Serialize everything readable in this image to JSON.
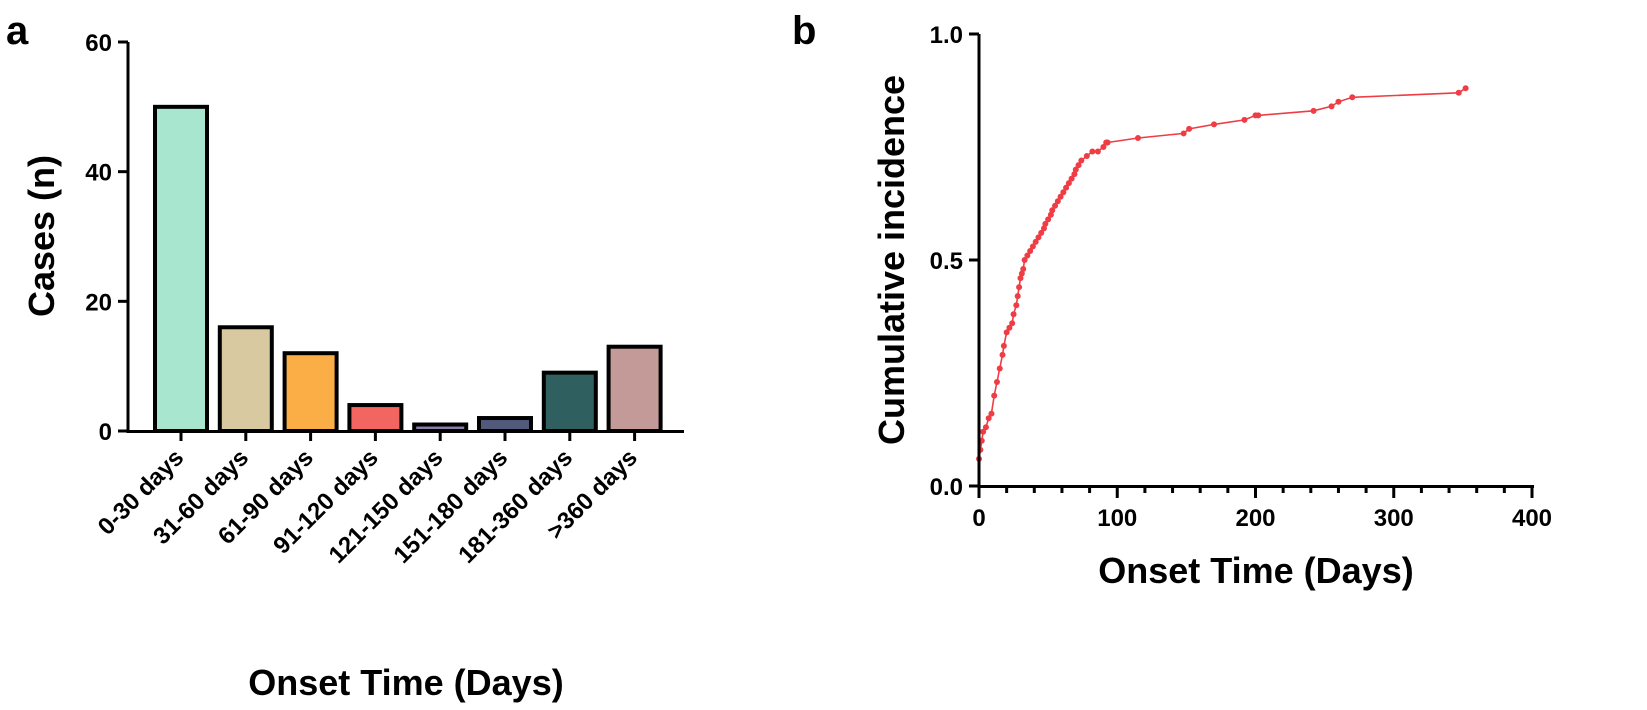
{
  "chart_data": [
    {
      "panel": "a",
      "type": "bar",
      "title": "",
      "xlabel": "Onset Time (Days)",
      "ylabel": "Cases (n)",
      "ylim": [
        0,
        60
      ],
      "yticks": [
        0,
        20,
        40,
        60
      ],
      "categories": [
        "0-30 days",
        "31-60 days",
        "61-90 days",
        "91-120 days",
        "121-150 days",
        "151-180 days",
        "181-360 days",
        ">360 days"
      ],
      "values": [
        50,
        16,
        12,
        4,
        1,
        2,
        9,
        13
      ],
      "colors": [
        "#a8e6d0",
        "#d8c9a0",
        "#fbae45",
        "#f26560",
        "#8a7ba8",
        "#525a7c",
        "#2f5f5f",
        "#c49a98"
      ],
      "grid": false
    },
    {
      "panel": "b",
      "type": "line",
      "title": "",
      "xlabel": "Onset Time (Days)",
      "ylabel": "Cumulative incidence",
      "xlim": [
        0,
        400
      ],
      "ylim": [
        0,
        1
      ],
      "xticks": [
        0,
        100,
        200,
        300,
        400
      ],
      "yticks": [
        0.0,
        0.5,
        1.0
      ],
      "ytick_labels": [
        "0.0",
        "0.5",
        "1.0"
      ],
      "color": "#ee3d45",
      "grid": false,
      "series": [
        {
          "name": "Cumulative incidence",
          "x": [
            0,
            1,
            2,
            3,
            5,
            7,
            9,
            11,
            13,
            15,
            17,
            18,
            20,
            22,
            24,
            25,
            27,
            28,
            29,
            30,
            31,
            32,
            33,
            35,
            37,
            39,
            41,
            43,
            45,
            47,
            48,
            50,
            52,
            53,
            55,
            57,
            59,
            61,
            63,
            65,
            67,
            69,
            70,
            72,
            74,
            78,
            82,
            86,
            90,
            92,
            93,
            115,
            148,
            152,
            170,
            192,
            200,
            202,
            242,
            255,
            260,
            270,
            347,
            352
          ],
          "y": [
            0.06,
            0.08,
            0.1,
            0.12,
            0.13,
            0.15,
            0.16,
            0.2,
            0.23,
            0.26,
            0.29,
            0.31,
            0.34,
            0.35,
            0.36,
            0.38,
            0.4,
            0.42,
            0.44,
            0.46,
            0.47,
            0.48,
            0.5,
            0.51,
            0.52,
            0.53,
            0.54,
            0.55,
            0.56,
            0.57,
            0.58,
            0.59,
            0.6,
            0.61,
            0.62,
            0.63,
            0.64,
            0.65,
            0.66,
            0.67,
            0.68,
            0.69,
            0.7,
            0.71,
            0.72,
            0.73,
            0.74,
            0.74,
            0.75,
            0.76,
            0.76,
            0.77,
            0.78,
            0.79,
            0.8,
            0.81,
            0.82,
            0.82,
            0.83,
            0.84,
            0.85,
            0.86,
            0.87,
            0.88
          ]
        }
      ]
    }
  ]
}
